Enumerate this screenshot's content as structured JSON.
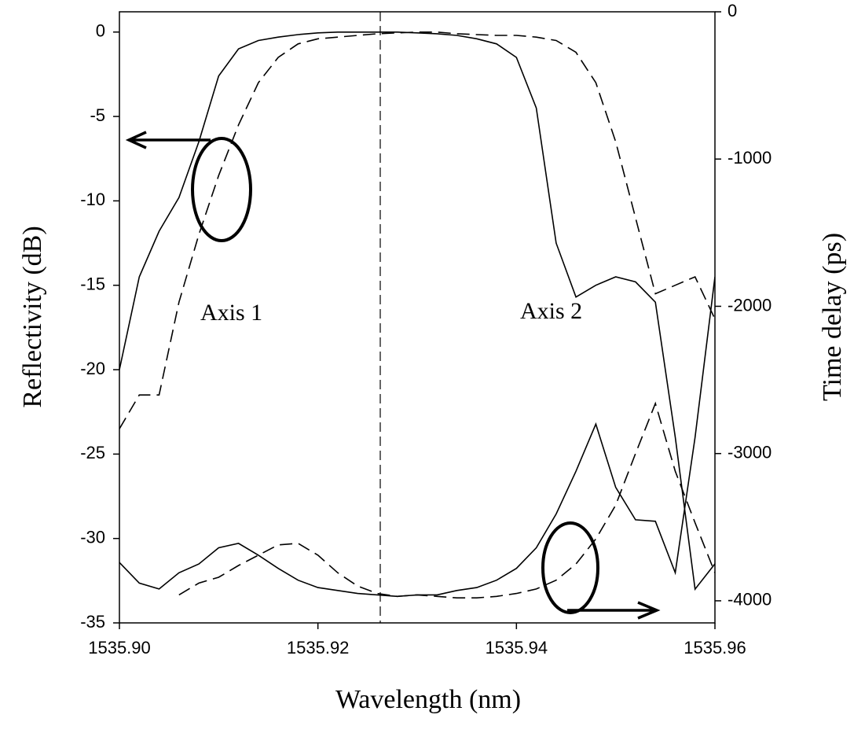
{
  "chart_data": {
    "type": "line",
    "x_label": "Wavelength (nm)",
    "y_label": "Reflectivity (dB)",
    "y2_label": "Time delay (ps)",
    "x": [
      1535.9,
      1535.902,
      1535.904,
      1535.906,
      1535.908,
      1535.91,
      1535.912,
      1535.914,
      1535.916,
      1535.918,
      1535.92,
      1535.922,
      1535.924,
      1535.926,
      1535.928,
      1535.93,
      1535.932,
      1535.934,
      1535.936,
      1535.938,
      1535.94,
      1535.942,
      1535.944,
      1535.946,
      1535.948,
      1535.95,
      1535.952,
      1535.954,
      1535.956,
      1535.958,
      1535.96
    ],
    "series": [
      {
        "color": "#000000",
        "line_style": "solid",
        "values": [
          -20,
          -14.5,
          -11.8,
          -9.8,
          -6.5,
          -2.6,
          -1.0,
          -0.5,
          -0.3,
          -0.15,
          -0.05,
          0,
          0,
          0,
          0,
          -0.05,
          -0.1,
          -0.2,
          -0.4,
          -0.7,
          -1.5,
          -4.5,
          -12.5,
          -15.7,
          -15,
          -14.5,
          -14.8,
          -16,
          -24,
          -33,
          -31.5
        ]
      },
      {
        "color": "#000000",
        "line_style": "dashed",
        "values": [
          -23.5,
          -21.5,
          -21.5,
          -16,
          -12,
          -8.5,
          -5.5,
          -3,
          -1.5,
          -0.7,
          -0.4,
          -0.3,
          -0.2,
          -0.1,
          -0.05,
          0,
          0,
          -0.1,
          -0.15,
          -0.2,
          -0.2,
          -0.3,
          -0.5,
          -1.2,
          -3,
          -6.5,
          -11,
          -15.5,
          -15,
          -14.5,
          -17
        ]
      },
      {
        "color": "#000000",
        "line_style": "solid",
        "axis": "y2",
        "values": [
          -3740,
          -3880,
          -3920,
          -3810,
          -3750,
          -3640,
          -3610,
          -3690,
          -3780,
          -3860,
          -3910,
          -3930,
          -3950,
          -3960,
          -3970,
          -3960,
          -3960,
          -3930,
          -3910,
          -3860,
          -3780,
          -3640,
          -3410,
          -3120,
          -2800,
          -3230,
          -3450,
          -3460,
          -3810,
          -2890,
          -1800
        ]
      },
      {
        "color": "#000000",
        "line_style": "dashed",
        "axis": "y2",
        "values": [
          null,
          null,
          null,
          -3960,
          -3880,
          -3840,
          -3760,
          -3690,
          -3620,
          -3610,
          -3690,
          -3810,
          -3900,
          -3950,
          -3970,
          -3960,
          -3970,
          -3980,
          -3980,
          -3970,
          -3950,
          -3920,
          -3860,
          -3750,
          -3580,
          -3350,
          -3000,
          -2660,
          -3120,
          -3470,
          -3810
        ]
      }
    ],
    "xlim": [
      1535.9,
      1535.96
    ],
    "xticks": [
      {
        "value": 1535.9,
        "label": "1535.90"
      },
      {
        "value": 1535.92,
        "label": "1535.92"
      },
      {
        "value": 1535.94,
        "label": "1535.94"
      },
      {
        "value": 1535.96,
        "label": "1535.96"
      }
    ],
    "ylim": [
      -35,
      1.2
    ],
    "yticks": [
      0,
      -5,
      -10,
      -15,
      -20,
      -25,
      -30,
      -35
    ],
    "y2lim": [
      -4150,
      0
    ],
    "y2ticks": [
      0,
      -1000,
      -2000,
      -3000,
      -4000
    ],
    "annotations": [
      "Axis 1",
      "Axis 2"
    ]
  }
}
